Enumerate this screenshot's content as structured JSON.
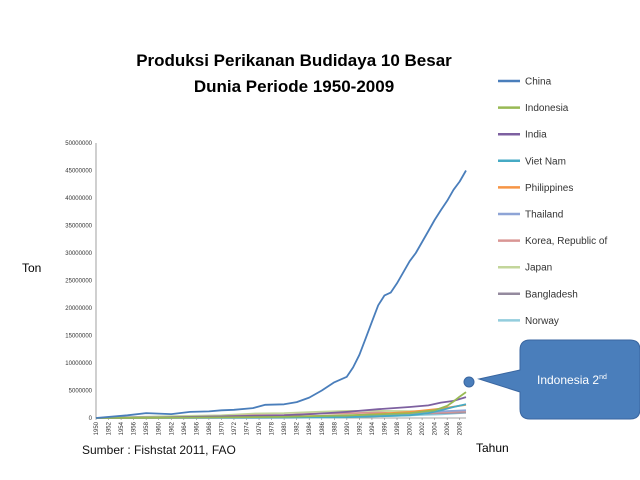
{
  "chart_data": {
    "type": "line",
    "title_lines": [
      "Produksi Perikanan Budidaya 10  Besar",
      "Dunia Periode 1950-2009"
    ],
    "ylabel": "Ton",
    "xlabel": "Tahun",
    "ylim": [
      0,
      50000000
    ],
    "yticks": [
      "0",
      "5000000",
      "10000000",
      "15000000",
      "20000000",
      "25000000",
      "30000000",
      "35000000",
      "40000000",
      "45000000",
      "50000000"
    ],
    "xticks": [
      "1950",
      "1952",
      "1954",
      "1956",
      "1958",
      "1960",
      "1962",
      "1964",
      "1966",
      "1968",
      "1970",
      "1972",
      "1974",
      "1976",
      "1978",
      "1980",
      "1982",
      "1984",
      "1986",
      "1988",
      "1990",
      "1992",
      "1994",
      "1996",
      "1998",
      "2000",
      "2002",
      "2004",
      "2006",
      "2008"
    ],
    "x_start": 1950,
    "x_end": 2009,
    "legend_position": "right",
    "series": [
      {
        "name": "China",
        "color": "#4a7ebb",
        "x": [
          1950,
          1955,
          1958,
          1960,
          1962,
          1965,
          1968,
          1970,
          1972,
          1975,
          1977,
          1980,
          1982,
          1984,
          1986,
          1988,
          1990,
          1991,
          1992,
          1993,
          1994,
          1995,
          1996,
          1997,
          1998,
          1999,
          2000,
          2001,
          2002,
          2003,
          2004,
          2005,
          2006,
          2007,
          2008,
          2009
        ],
        "values": [
          0,
          500000,
          900000,
          800000,
          700000,
          1100000,
          1200000,
          1400000,
          1500000,
          1800000,
          2400000,
          2500000,
          2900000,
          3700000,
          5000000,
          6500000,
          7500000,
          9200000,
          11500000,
          14500000,
          17500000,
          20500000,
          22300000,
          22800000,
          24500000,
          26500000,
          28500000,
          30000000,
          32000000,
          34000000,
          36000000,
          37800000,
          39500000,
          41500000,
          43000000,
          45000000
        ]
      },
      {
        "name": "Indonesia",
        "color": "#98b954",
        "x": [
          1950,
          1960,
          1970,
          1980,
          1990,
          1995,
          2000,
          2004,
          2006,
          2007,
          2008,
          2009
        ],
        "values": [
          0,
          60000,
          100000,
          200000,
          500000,
          650000,
          900000,
          1400000,
          2200000,
          3000000,
          3900000,
          4700000
        ]
      },
      {
        "name": "India",
        "color": "#7d60a0",
        "x": [
          1950,
          1960,
          1970,
          1980,
          1985,
          1990,
          1995,
          2000,
          2003,
          2005,
          2007,
          2009
        ],
        "values": [
          0,
          100000,
          300000,
          500000,
          750000,
          1100000,
          1600000,
          2000000,
          2300000,
          2800000,
          3100000,
          3800000
        ]
      },
      {
        "name": "Viet Nam",
        "color": "#46aac4",
        "x": [
          1950,
          1970,
          1980,
          1990,
          2000,
          2003,
          2005,
          2007,
          2009
        ],
        "values": [
          0,
          70000,
          100000,
          150000,
          500000,
          900000,
          1400000,
          2000000,
          2500000
        ]
      },
      {
        "name": "Philippines",
        "color": "#f69545",
        "x": [
          1950,
          1960,
          1970,
          1980,
          1990,
          2000,
          2005,
          2009
        ],
        "values": [
          0,
          50000,
          100000,
          300000,
          400000,
          1100000,
          1700000,
          2400000
        ]
      },
      {
        "name": "Thailand",
        "color": "#8ea4d6",
        "x": [
          1950,
          1960,
          1970,
          1980,
          1990,
          2000,
          2005,
          2009
        ],
        "values": [
          0,
          50000,
          100000,
          200000,
          400000,
          750000,
          1200000,
          1400000
        ]
      },
      {
        "name": "Korea, Republic of",
        "color": "#d99694",
        "x": [
          1950,
          1960,
          1970,
          1975,
          1980,
          1985,
          1990,
          1995,
          2000,
          2005,
          2009
        ],
        "values": [
          0,
          50000,
          300000,
          500000,
          550000,
          800000,
          850000,
          1000000,
          700000,
          1000000,
          1200000
        ]
      },
      {
        "name": "Japan",
        "color": "#c3d69b",
        "x": [
          1950,
          1960,
          1970,
          1975,
          1980,
          1985,
          1990,
          1995,
          2000,
          2005,
          2009
        ],
        "values": [
          0,
          300000,
          500000,
          800000,
          900000,
          1100000,
          1300000,
          1300000,
          1250000,
          1200000,
          1200000
        ]
      },
      {
        "name": "Bangladesh",
        "color": "#948a9e",
        "x": [
          1950,
          1970,
          1980,
          1990,
          2000,
          2005,
          2009
        ],
        "values": [
          0,
          50000,
          100000,
          200000,
          700000,
          900000,
          1000000
        ]
      },
      {
        "name": "Norway",
        "color": "#93cddd",
        "x": [
          1950,
          1970,
          1980,
          1990,
          2000,
          2005,
          2009
        ],
        "values": [
          0,
          0,
          10000,
          150000,
          500000,
          650000,
          960000
        ]
      }
    ]
  },
  "source_text": "Sumber : Fishstat 2011, FAO",
  "callout": {
    "text": "Indonesia 2",
    "superscript": "nd",
    "fill": "#4a7ebb",
    "border": "#3a66a0"
  }
}
